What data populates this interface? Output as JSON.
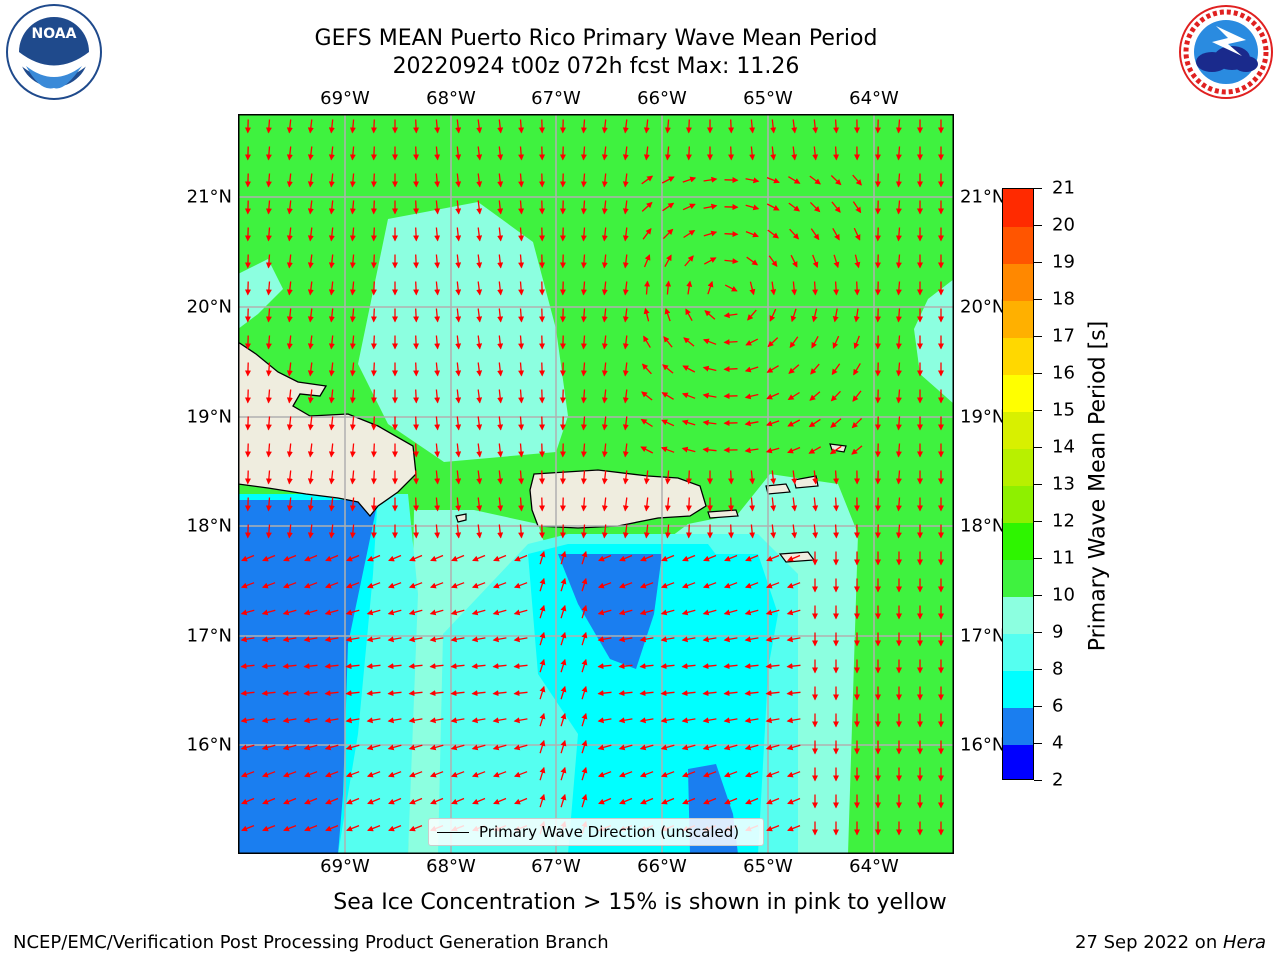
{
  "header": {
    "title_line1": "GEFS MEAN Puerto Rico Primary Wave Mean Period",
    "title_line2": "20220924 t00z 072h fcst   Max: 11.26"
  },
  "logos": {
    "left": {
      "name": "NOAA",
      "text": "NOAA",
      "ring_text": "NATIONAL OCEANIC AND ATMOSPHERIC ADMINISTRATION · U.S. DEPARTMENT OF COMMERCE"
    },
    "right": {
      "name": "National Weather Service",
      "ring_text": "NATIONAL WEATHER SERVICE"
    }
  },
  "map": {
    "lon_labels": [
      "69°W",
      "68°W",
      "67°W",
      "66°W",
      "65°W",
      "64°W"
    ],
    "lat_labels": [
      "21°N",
      "20°N",
      "19°N",
      "18°N",
      "17°N",
      "16°N"
    ],
    "lon_range": [
      -70.0,
      -63.25
    ],
    "lat_range": [
      15.0,
      21.75
    ],
    "arrow_color": "#ff0000",
    "land_color": "#efeddf"
  },
  "legend": {
    "label": "Primary Wave Direction (unscaled)"
  },
  "colorbar": {
    "title": "Primary Wave Mean Period [s]",
    "ticks": [
      "2",
      "4",
      "6",
      "8",
      "9",
      "10",
      "11",
      "12",
      "13",
      "14",
      "15",
      "16",
      "17",
      "18",
      "19",
      "20",
      "21"
    ],
    "colors": [
      "#0000ff",
      "#1a7ef0",
      "#00ffff",
      "#55fff0",
      "#8cffe0",
      "#3ff23f",
      "#2ef500",
      "#8ef000",
      "#b8f000",
      "#d8f000",
      "#ffff00",
      "#ffd800",
      "#ffb000",
      "#ff8800",
      "#ff5500",
      "#ff2a00"
    ],
    "level_colors": {
      "4-6": "#1a7ef0",
      "6-8": "#00ffff",
      "8-9": "#55fff0",
      "9-10": "#8cffe0",
      "10-11": "#3ff23f"
    }
  },
  "footer": {
    "subtitle": "Sea Ice Concentration > 15% is shown in pink to yellow",
    "left": "NCEP/EMC/Verification Post Processing Product Generation Branch",
    "right_prefix": "27 Sep 2022 on ",
    "right_host": "Hera"
  }
}
